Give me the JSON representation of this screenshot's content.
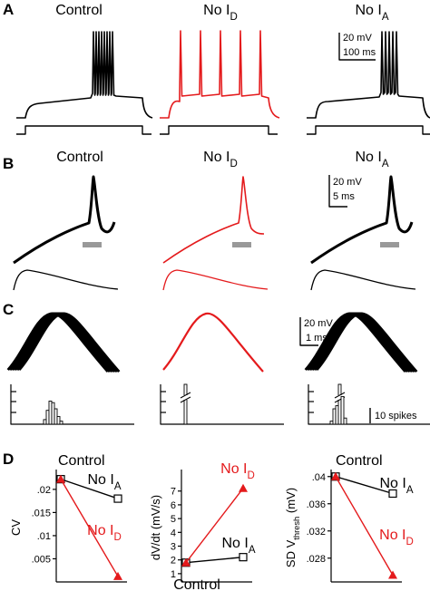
{
  "panels": {
    "A": {
      "letter": "A",
      "titles": [
        [
          "Control"
        ],
        [
          "No I",
          "D"
        ],
        [
          "No I",
          "A"
        ]
      ],
      "scalebar": [
        "20 mV",
        "100 ms"
      ]
    },
    "B": {
      "letter": "B",
      "titles": [
        [
          "Control"
        ],
        [
          "No I",
          "D"
        ],
        [
          "No I",
          "A"
        ]
      ],
      "scalebar": [
        "20 mV",
        "5 ms"
      ]
    },
    "C": {
      "letter": "C",
      "scalebar": [
        "20 mV",
        "1 ms"
      ],
      "hist_scalebar": "10 spikes",
      "histograms": [
        {
          "counts": [
            3,
            9,
            15,
            14,
            10,
            5,
            2
          ]
        },
        {
          "counts": [
            60
          ]
        },
        {
          "counts": [
            2,
            10,
            12,
            26,
            18,
            4
          ]
        }
      ]
    },
    "D": {
      "letter": "D"
    }
  },
  "chart_data": [
    {
      "type": "line",
      "ylabel": [
        "CV"
      ],
      "ylim": [
        0,
        0.0235
      ],
      "yticks": [
        {
          "value": 0.005,
          "label": ".005"
        },
        {
          "value": 0.01,
          "label": ".01"
        },
        {
          "value": 0.015,
          "label": ".015"
        },
        {
          "value": 0.02,
          "label": ".02"
        }
      ],
      "categories": [
        "Control",
        null
      ],
      "series": [
        {
          "name": [
            "No I",
            "A"
          ],
          "color": "#000000",
          "marker": "square",
          "values": [
            0.0222,
            0.018
          ]
        },
        {
          "name": [
            "No I",
            "D"
          ],
          "color": "#e41a1c",
          "marker": "triangle",
          "values": [
            0.0222,
            0.0012
          ]
        }
      ]
    },
    {
      "type": "line",
      "ylabel": [
        "dV/dt (mV/s)"
      ],
      "ylim": [
        0.4,
        8.3
      ],
      "yticks": [
        1,
        2,
        3,
        4,
        5,
        6,
        7
      ],
      "categories": [
        "Control",
        null
      ],
      "series": [
        {
          "name": [
            "No I",
            "A"
          ],
          "color": "#000000",
          "marker": "square",
          "values": [
            1.8,
            2.2
          ]
        },
        {
          "name": [
            "No I",
            "D"
          ],
          "color": "#e41a1c",
          "marker": "triangle",
          "values": [
            1.8,
            7.2
          ]
        }
      ]
    },
    {
      "type": "line",
      "ylabel": [
        "SD V",
        "thresh",
        " (mV)"
      ],
      "ylim": [
        0.0245,
        0.0405
      ],
      "yticks": [
        {
          "value": 0.028,
          "label": ".028"
        },
        {
          "value": 0.032,
          "label": ".032"
        },
        {
          "value": 0.036,
          "label": ".036"
        },
        {
          "value": 0.04,
          "label": ".04"
        }
      ],
      "categories": [
        "Control",
        null
      ],
      "series": [
        {
          "name": [
            "No I",
            "A"
          ],
          "color": "#000000",
          "marker": "square",
          "values": [
            0.04,
            0.0375
          ]
        },
        {
          "name": [
            "No I",
            "D"
          ],
          "color": "#e41a1c",
          "marker": "triangle",
          "values": [
            0.04,
            0.0255
          ]
        }
      ]
    }
  ]
}
